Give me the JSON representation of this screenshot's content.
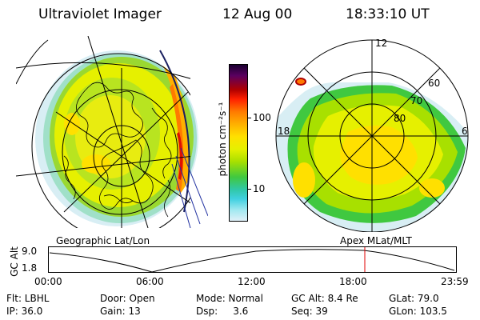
{
  "header": {
    "instrument": "Ultraviolet Imager",
    "date": "12 Aug 00",
    "time": "18:33:10 UT"
  },
  "geo_panel": {
    "label": "Geographic Lat/Lon"
  },
  "mag_panel": {
    "label": "Apex MLat/MLT",
    "mlt_labels": [
      "12",
      "18",
      "6"
    ],
    "lat_labels": [
      "60",
      "70",
      "80"
    ]
  },
  "colorbar": {
    "unit": "photon cm⁻²s⁻¹",
    "ticks": [
      "100",
      "10"
    ],
    "colors": [
      "#1a0030",
      "#5a0060",
      "#b00000",
      "#ff2000",
      "#ff7a00",
      "#ffb000",
      "#ffe000",
      "#e6f000",
      "#a8e000",
      "#40c840",
      "#30c8a8",
      "#40d0e0",
      "#a0e8f0",
      "#e0f0f8"
    ]
  },
  "altitude_plot": {
    "ylabel": "GC Alt",
    "yticks": [
      "9.0",
      "1.8"
    ],
    "xticks": [
      "00:00",
      "06:00",
      "12:00",
      "18:00",
      "23:59"
    ],
    "current_time": "18:33"
  },
  "footer": {
    "row1": {
      "flt": "Flt: LBHL",
      "door": "Door: Open",
      "mode": "Mode: Normal",
      "gcalt": "GC Alt: 8.4 Re",
      "glat": "GLat:  79.0"
    },
    "row2": {
      "ip": "IP: 36.0",
      "gain": "Gain: 13",
      "dsp": "Dsp:     3.6",
      "seq": "Seq: 39",
      "glon": "GLon: 103.5"
    }
  }
}
